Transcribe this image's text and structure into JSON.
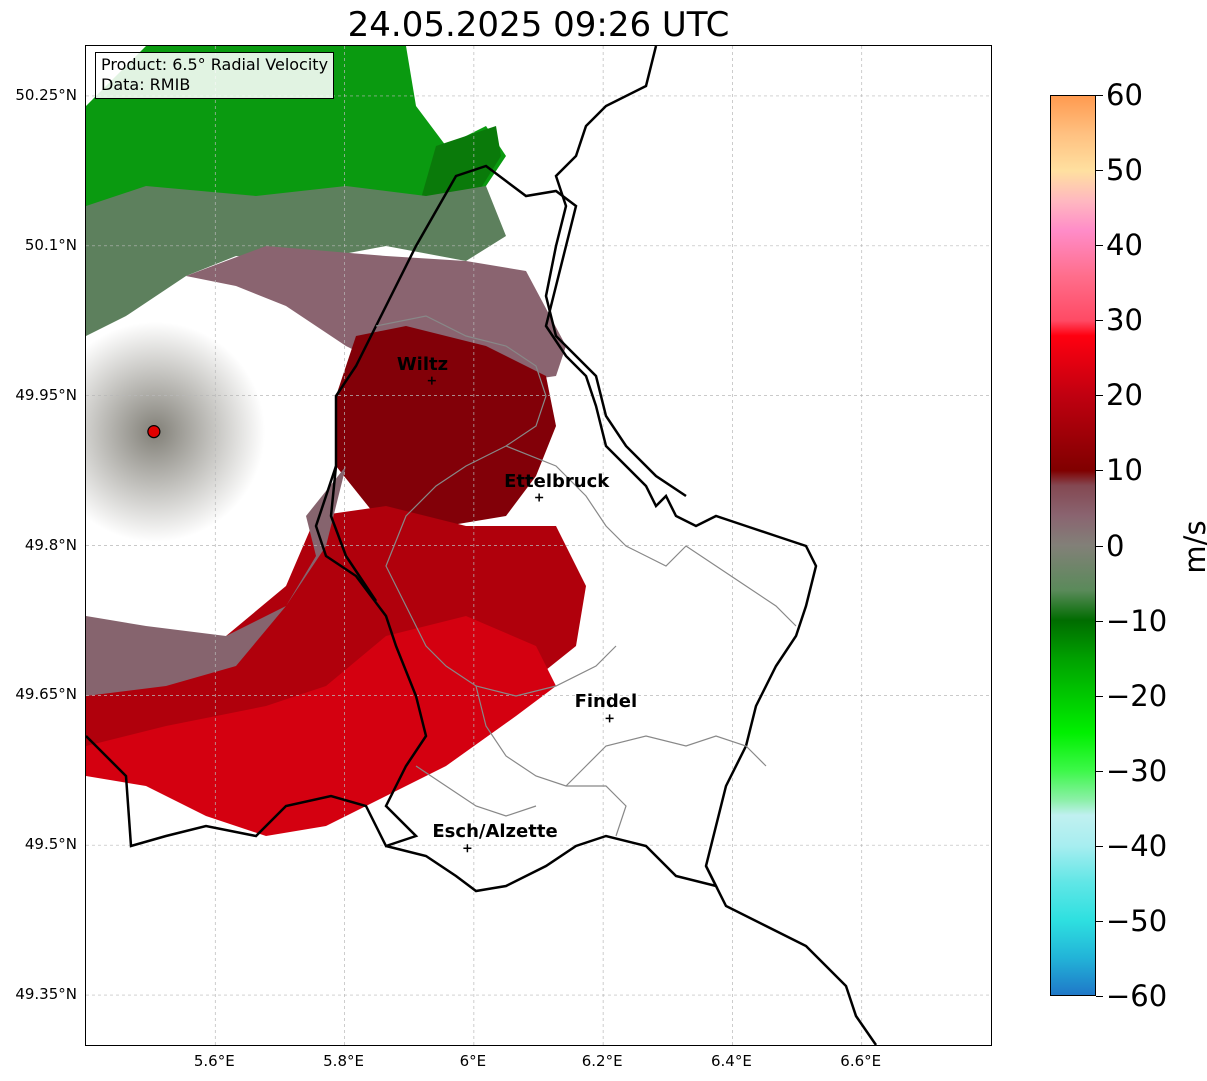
{
  "title": "24.05.2025 09:26 UTC",
  "info_box": {
    "product": "Product: 6.5° Radial Velocity",
    "data": "Data: RMIB"
  },
  "map_data": {
    "projection": "PlateCarree",
    "lon_range": [
      5.4,
      6.8
    ],
    "lat_range": [
      49.3,
      50.3
    ],
    "gridlines": true,
    "lat_ticks": [
      {
        "value": 50.25,
        "label": "50.25°N"
      },
      {
        "value": 50.1,
        "label": "50.1°N"
      },
      {
        "value": 49.95,
        "label": "49.95°N"
      },
      {
        "value": 49.8,
        "label": "49.8°N"
      },
      {
        "value": 49.65,
        "label": "49.65°N"
      },
      {
        "value": 49.5,
        "label": "49.5°N"
      },
      {
        "value": 49.35,
        "label": "49.35°N"
      }
    ],
    "lon_ticks": [
      {
        "value": 5.6,
        "label": "5.6°E"
      },
      {
        "value": 5.8,
        "label": "5.8°E"
      },
      {
        "value": 6.0,
        "label": "6°E"
      },
      {
        "value": 6.2,
        "label": "6.2°E"
      },
      {
        "value": 6.4,
        "label": "6.4°E"
      },
      {
        "value": 6.6,
        "label": "6.6°E"
      }
    ],
    "radar_site": {
      "lon": 5.505,
      "lat": 49.914,
      "color": "#e00000"
    },
    "cities": [
      {
        "name": "Wiltz",
        "lon": 5.935,
        "lat": 49.965
      },
      {
        "name": "Ettelbruck",
        "lon": 6.101,
        "lat": 49.848
      },
      {
        "name": "Findel",
        "lon": 6.21,
        "lat": 49.627
      },
      {
        "name": "Esch/Alzette",
        "lon": 5.99,
        "lat": 49.497
      }
    ]
  },
  "colorbar": {
    "label": "m/s",
    "min": -60,
    "max": 60,
    "ticks": [
      {
        "value": 60,
        "label": "60"
      },
      {
        "value": 50,
        "label": "50"
      },
      {
        "value": 40,
        "label": "40"
      },
      {
        "value": 30,
        "label": "30"
      },
      {
        "value": 20,
        "label": "20"
      },
      {
        "value": 10,
        "label": "10"
      },
      {
        "value": 0,
        "label": "0"
      },
      {
        "value": -10,
        "label": "−10"
      },
      {
        "value": -20,
        "label": "−20"
      },
      {
        "value": -30,
        "label": "−30"
      },
      {
        "value": -40,
        "label": "−40"
      },
      {
        "value": -50,
        "label": "−50"
      },
      {
        "value": -60,
        "label": "−60"
      }
    ],
    "stops": [
      {
        "value": -60,
        "color": "#1f78c8"
      },
      {
        "value": -55,
        "color": "#22b4d8"
      },
      {
        "value": -50,
        "color": "#2ee0e0"
      },
      {
        "value": -45,
        "color": "#60e6e6"
      },
      {
        "value": -40,
        "color": "#a8eef0"
      },
      {
        "value": -36,
        "color": "#c0f0f0"
      },
      {
        "value": -34,
        "color": "#8cf0a8"
      },
      {
        "value": -30,
        "color": "#3cf848"
      },
      {
        "value": -25,
        "color": "#00f000"
      },
      {
        "value": -20,
        "color": "#00c800"
      },
      {
        "value": -15,
        "color": "#00a000"
      },
      {
        "value": -10,
        "color": "#006c00"
      },
      {
        "value": -6,
        "color": "#5a8a5a"
      },
      {
        "value": 0,
        "color": "#828078"
      },
      {
        "value": 4,
        "color": "#8a6470"
      },
      {
        "value": 8,
        "color": "#844852"
      },
      {
        "value": 10,
        "color": "#800000"
      },
      {
        "value": 20,
        "color": "#c00010"
      },
      {
        "value": 28,
        "color": "#ff0010"
      },
      {
        "value": 30,
        "color": "#ff4a64"
      },
      {
        "value": 36,
        "color": "#ff6e8c"
      },
      {
        "value": 42,
        "color": "#ff8cc8"
      },
      {
        "value": 46,
        "color": "#ffb8c0"
      },
      {
        "value": 50,
        "color": "#ffe0a0"
      },
      {
        "value": 55,
        "color": "#ffc080"
      },
      {
        "value": 60,
        "color": "#ff9a50"
      }
    ]
  }
}
